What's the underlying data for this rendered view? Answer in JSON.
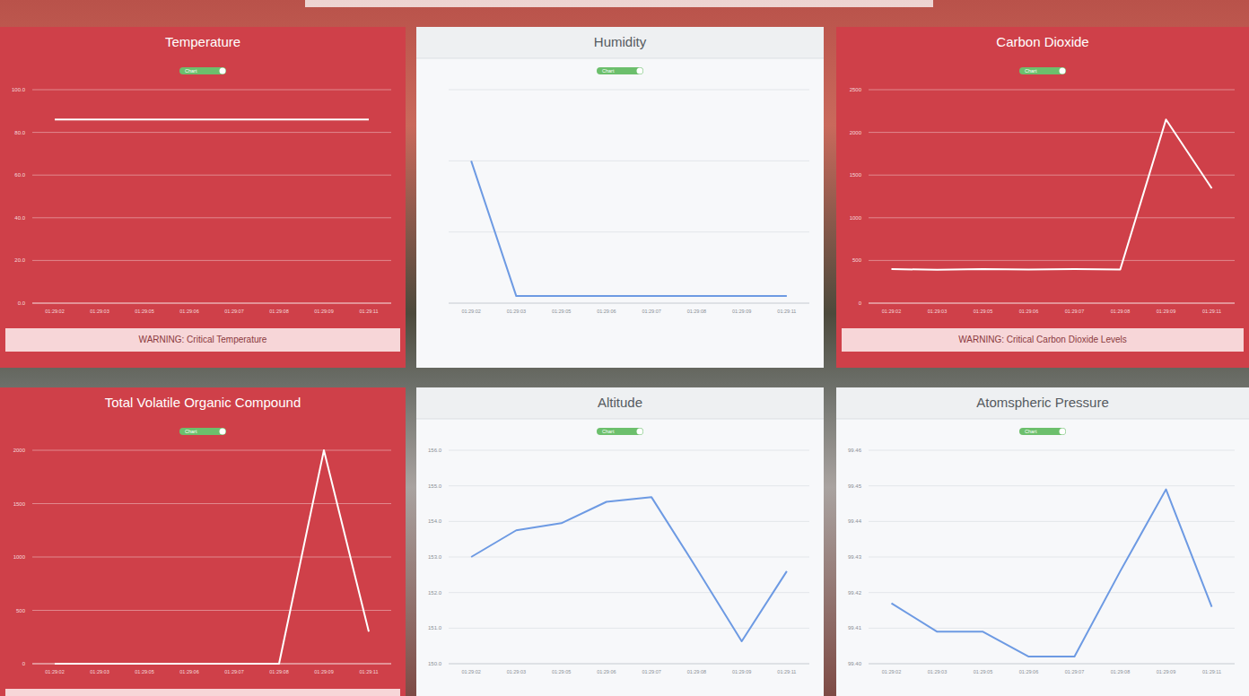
{
  "chart_data": [
    {
      "type": "line",
      "title": "Temperature",
      "toggle_label": "Chart",
      "categories": [
        "01:29:02",
        "01:29:03",
        "01:29:05",
        "01:29:06",
        "01:29:07",
        "01:29:08",
        "01:29:09",
        "01:29:11"
      ],
      "values": [
        86,
        86,
        86,
        86,
        86,
        86,
        86,
        86
      ],
      "color": "#ffffff",
      "ylim": [
        0,
        100
      ],
      "yticks": [
        {
          "value": 0,
          "label": "0.0"
        },
        {
          "value": 20,
          "label": "20.0"
        },
        {
          "value": 40,
          "label": "40.0"
        },
        {
          "value": 60,
          "label": "60.0"
        },
        {
          "value": 80,
          "label": "80.0"
        },
        {
          "value": 100,
          "label": "100.0"
        }
      ],
      "grid": true,
      "warning": "WARNING: Critical Temperature"
    },
    {
      "type": "line",
      "title": "Humidity",
      "toggle_label": "Chart",
      "categories": [
        "01:29:02",
        "01:29:03",
        "01:29:05",
        "01:29:06",
        "01:29:07",
        "01:29:08",
        "01:29:09",
        "01:29:11"
      ],
      "values": [
        40,
        2,
        2,
        2,
        2,
        2,
        2,
        2
      ],
      "color": "#6d9ae3",
      "ylim": [
        0,
        60
      ],
      "yticks": [
        0,
        20,
        40,
        60
      ],
      "grid": true,
      "tick_labels": "x"
    },
    {
      "type": "line",
      "title": "Carbon Dioxide",
      "toggle_label": "Chart",
      "categories": [
        "01:29:02",
        "01:29:03",
        "01:29:05",
        "01:29:06",
        "01:29:07",
        "01:29:08",
        "01:29:09",
        "01:29:11"
      ],
      "values": [
        400,
        390,
        400,
        395,
        400,
        395,
        2150,
        1345
      ],
      "color": "#ffffff",
      "ylim": [
        0,
        2500
      ],
      "yticks": [
        0,
        500,
        1000,
        1500,
        2000,
        2500
      ],
      "grid": true,
      "warning": "WARNING: Critical Carbon Dioxide Levels"
    },
    {
      "type": "line",
      "title": "Total Volatile Organic Compound",
      "toggle_label": "Chart",
      "categories": [
        "01:29:02",
        "01:29:03",
        "01:29:05",
        "01:29:06",
        "01:29:07",
        "01:29:08",
        "01:29:09",
        "01:29:11"
      ],
      "values": [
        0,
        0,
        0,
        0,
        0,
        0,
        2000,
        300
      ],
      "color": "#ffffff",
      "ylim": [
        0,
        2000
      ],
      "yticks": [
        0,
        500,
        1000,
        1500,
        2000
      ],
      "grid": true
    },
    {
      "type": "line",
      "title": "Altitude",
      "toggle_label": "Chart",
      "categories": [
        "01:29:02",
        "01:29:03",
        "01:29:05",
        "01:29:06",
        "01:29:07",
        "01:29:08",
        "01:29:09",
        "01:29:11"
      ],
      "values": [
        153.0,
        153.75,
        153.95,
        154.55,
        154.68,
        152.68,
        150.63,
        152.6
      ],
      "color": "#6d9ae3",
      "ylim": [
        150,
        156
      ],
      "yticks": [
        {
          "value": 150,
          "label": "150.0"
        },
        {
          "value": 151,
          "label": "151.0"
        },
        {
          "value": 152,
          "label": "152.0"
        },
        {
          "value": 153,
          "label": "153.0"
        },
        {
          "value": 154,
          "label": "154.0"
        },
        {
          "value": 155,
          "label": "155.0"
        },
        {
          "value": 156,
          "label": "156.0"
        }
      ],
      "grid": true
    },
    {
      "type": "line",
      "title": "Atomspheric Pressure",
      "toggle_label": "Chart",
      "categories": [
        "01:29:02",
        "01:29:03",
        "01:29:05",
        "01:29:06",
        "01:29:07",
        "01:29:08",
        "01:29:09",
        "01:29:11"
      ],
      "values": [
        99.417,
        99.409,
        99.409,
        99.402,
        99.402,
        99.426,
        99.449,
        99.416
      ],
      "color": "#6d9ae3",
      "ylim": [
        99.4,
        99.46
      ],
      "yticks": [
        {
          "value": 99.4,
          "label": "99.40"
        },
        {
          "value": 99.41,
          "label": "99.41"
        },
        {
          "value": 99.42,
          "label": "99.42"
        },
        {
          "value": 99.43,
          "label": "99.43"
        },
        {
          "value": 99.44,
          "label": "99.44"
        },
        {
          "value": 99.45,
          "label": "99.45"
        },
        {
          "value": 99.46,
          "label": "99.46"
        }
      ],
      "grid": true
    }
  ]
}
